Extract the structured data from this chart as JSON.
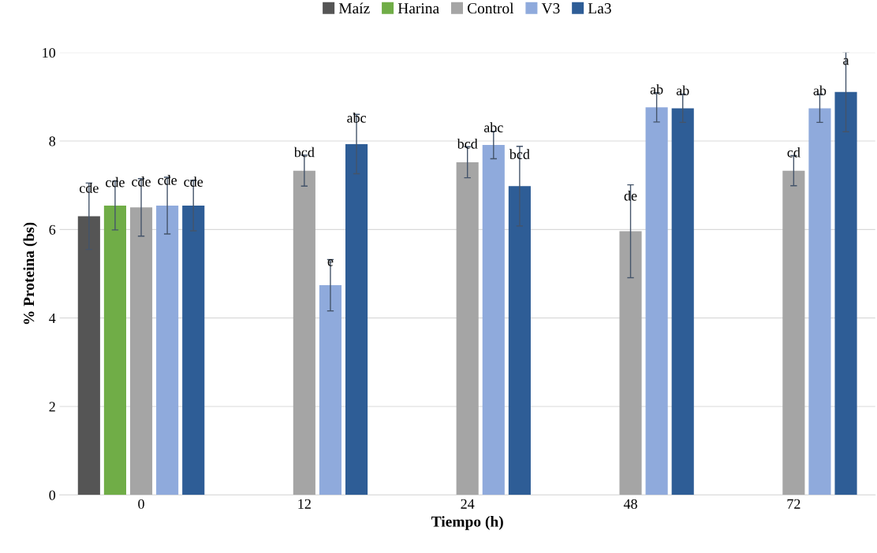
{
  "chart_data": {
    "type": "bar",
    "xlabel": "Tiempo (h)",
    "ylabel": "% Proteina (bs)",
    "categories": [
      "0",
      "12",
      "24",
      "48",
      "72"
    ],
    "ylim": [
      0,
      10
    ],
    "yticks": [
      0,
      2,
      4,
      6,
      8,
      10
    ],
    "grid": "y",
    "legend": "top",
    "series": [
      {
        "name": "Maíz",
        "color": "#555555",
        "values": [
          6.3,
          null,
          null,
          null,
          null
        ],
        "errors": [
          0.75,
          null,
          null,
          null,
          null
        ],
        "value_labels": [
          "cde",
          null,
          null,
          null,
          null
        ]
      },
      {
        "name": "Harina",
        "color": "#70ad47",
        "values": [
          6.54,
          null,
          null,
          null,
          null
        ],
        "errors": [
          0.55,
          null,
          null,
          null,
          null
        ],
        "value_labels": [
          "cde",
          null,
          null,
          null,
          null
        ]
      },
      {
        "name": "Control",
        "color": "#a5a5a5",
        "values": [
          6.5,
          7.33,
          7.52,
          5.96,
          7.33
        ],
        "errors": [
          0.65,
          0.35,
          0.35,
          1.05,
          0.34
        ],
        "value_labels": [
          "cde",
          "bcd",
          "bcd",
          "de",
          "cd"
        ]
      },
      {
        "name": "V3",
        "color": "#8faadc",
        "values": [
          6.54,
          4.74,
          7.91,
          8.76,
          8.74
        ],
        "errors": [
          0.64,
          0.58,
          0.31,
          0.33,
          0.32
        ],
        "value_labels": [
          "cde",
          "e",
          "abc",
          "ab",
          "ab"
        ]
      },
      {
        "name": "La3",
        "color": "#2e5d96",
        "values": [
          6.54,
          7.93,
          6.98,
          8.74,
          9.11
        ],
        "errors": [
          0.57,
          0.67,
          0.9,
          0.32,
          0.9
        ],
        "value_labels": [
          "cde",
          "abc",
          "bcd",
          "ab",
          "a"
        ]
      }
    ]
  }
}
